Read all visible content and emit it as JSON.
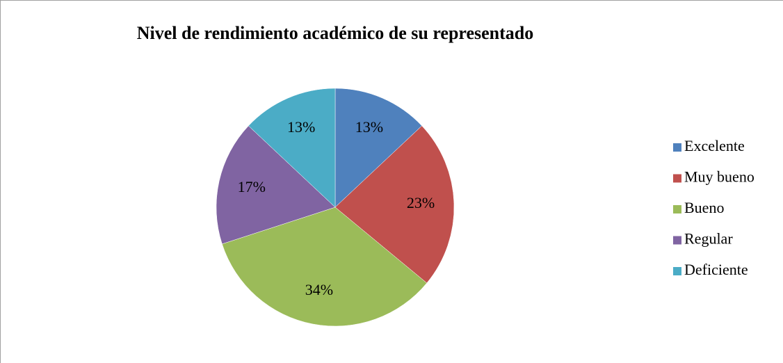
{
  "chart_data": {
    "type": "pie",
    "title": "Nivel de rendimiento académico de su representado",
    "categories": [
      "Excelente",
      "Muy bueno",
      "Bueno",
      "Regular",
      "Deficiente"
    ],
    "values": [
      13,
      23,
      34,
      17,
      13
    ],
    "value_labels": [
      "13%",
      "23%",
      "34%",
      "17%",
      "13%"
    ],
    "colors": [
      "#4f81bd",
      "#c0504d",
      "#9bbb59",
      "#8064a2",
      "#4bacc6"
    ],
    "legend": "right"
  }
}
